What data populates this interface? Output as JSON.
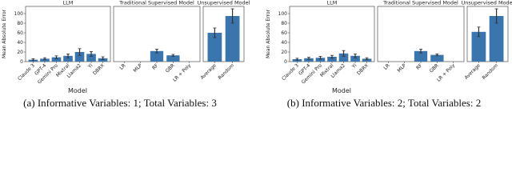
{
  "chart_data": [
    {
      "type": "bar",
      "title": "LLM",
      "ylabel": "Mean Absolute Error",
      "xlabel": "Model",
      "caption": "(a) Informative Variables: 1; Total Variables: 3",
      "categories": [
        "Claude 3",
        "GPT-4",
        "Gemini Pro",
        "Mixtral",
        "Llama2",
        "Yi",
        "DBRX"
      ],
      "values": [
        4,
        6,
        9,
        12,
        20,
        16,
        7
      ],
      "errors": [
        2,
        2,
        3,
        4,
        7,
        5,
        3
      ],
      "ylim": [
        0,
        115
      ],
      "yticks": [
        0,
        20,
        40,
        60,
        80,
        100
      ],
      "color": "#3a75ae"
    },
    {
      "type": "bar",
      "title": "Traditional Supervised Model",
      "categories": [
        "LR",
        "MLP",
        "RF",
        "GBR",
        "LR + Poly"
      ],
      "values": [
        0,
        0,
        22,
        13,
        0
      ],
      "errors": [
        0,
        0,
        4,
        2,
        0
      ],
      "ylim": [
        0,
        115
      ],
      "color": "#3a75ae"
    },
    {
      "type": "bar",
      "title": "Unsupervised Model",
      "categories": [
        "Average",
        "Random"
      ],
      "values": [
        60,
        95
      ],
      "errors": [
        10,
        15
      ],
      "ylim": [
        0,
        115
      ],
      "color": "#3a75ae"
    },
    {
      "type": "bar",
      "title": "LLM",
      "ylabel": "Mean Absolute Error",
      "xlabel": "Model",
      "caption": "(b) Informative Variables: 2; Total Variables: 2",
      "categories": [
        "Claude 3",
        "GPT-4",
        "Gemini Pro",
        "Mixtral",
        "Llama2",
        "Yi",
        "DBRX"
      ],
      "values": [
        5,
        7,
        8,
        10,
        17,
        12,
        6
      ],
      "errors": [
        2,
        2,
        3,
        3,
        6,
        4,
        2
      ],
      "ylim": [
        0,
        115
      ],
      "yticks": [
        0,
        20,
        40,
        60,
        80,
        100
      ],
      "color": "#3a75ae"
    },
    {
      "type": "bar",
      "title": "Traditional Supervised Model",
      "categories": [
        "LR",
        "MLP",
        "RF",
        "GBR",
        "LR + Poly"
      ],
      "values": [
        0,
        0,
        22,
        14,
        0
      ],
      "errors": [
        0,
        0,
        4,
        2,
        0
      ],
      "ylim": [
        0,
        115
      ],
      "color": "#3a75ae"
    },
    {
      "type": "bar",
      "title": "Unsupervised Model",
      "categories": [
        "Average",
        "Random"
      ],
      "values": [
        62,
        95
      ],
      "errors": [
        10,
        15
      ],
      "ylim": [
        0,
        115
      ],
      "color": "#3a75ae"
    }
  ]
}
